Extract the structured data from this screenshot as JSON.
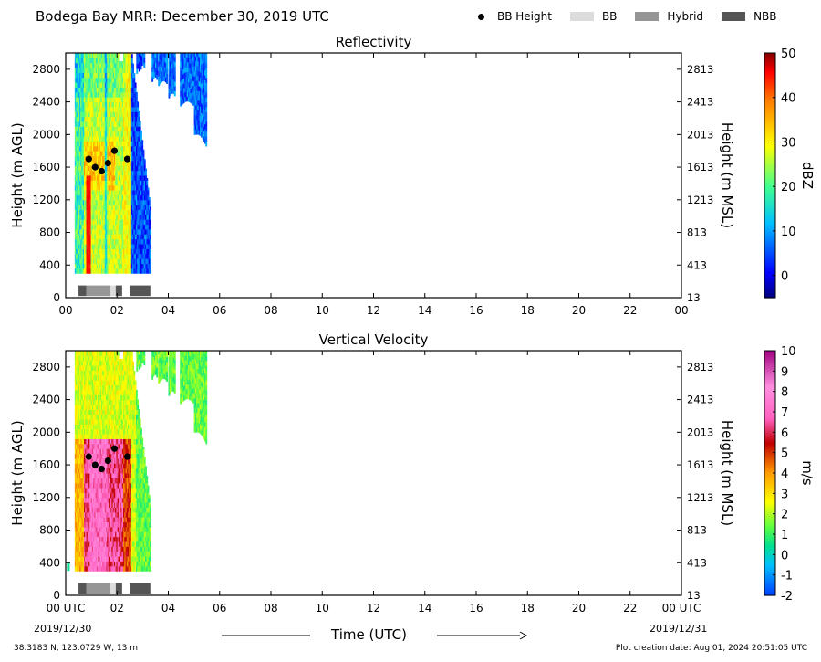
{
  "title": "Bodega Bay MRR:  December 30, 2019 UTC",
  "legend": [
    {
      "label": "BB Height",
      "kind": "dot",
      "color": "#000000"
    },
    {
      "label": "BB",
      "kind": "patch",
      "color": "#dcdcdc"
    },
    {
      "label": "Hybrid",
      "kind": "patch",
      "color": "#969696"
    },
    {
      "label": "NBB",
      "kind": "patch",
      "color": "#555555"
    }
  ],
  "footer": {
    "location": "38.3183 N, 123.0729 W, 13 m",
    "created": "Plot creation date: Aug 01, 2024 20:51:05 UTC"
  },
  "xaxis": {
    "label": "Time (UTC)",
    "start_date": "2019/12/30",
    "end_date": "2019/12/31"
  },
  "chart_data": [
    {
      "type": "heatmap",
      "title": "Reflectivity",
      "ylabel_left": "Height (m AGL)",
      "ylabel_right": "Height (m MSL)",
      "colorbar_label": "dBZ",
      "colorbar_range": [
        -5,
        50
      ],
      "colorbar_ticks": [
        0,
        10,
        20,
        30,
        40,
        50
      ],
      "xlim_hours": [
        0,
        24
      ],
      "ylim": [
        0,
        3000
      ],
      "x_ticks": [
        "00",
        "02",
        "04",
        "06",
        "08",
        "10",
        "12",
        "14",
        "16",
        "18",
        "20",
        "22",
        "00"
      ],
      "y_ticks_left": [
        0,
        400,
        800,
        1200,
        1600,
        2000,
        2400,
        2800
      ],
      "y_ticks_right": [
        13,
        413,
        813,
        1213,
        1613,
        2013,
        2413,
        2813
      ],
      "bb_height_points": [
        {
          "t": 0.9,
          "h": 1700
        },
        {
          "t": 1.15,
          "h": 1600
        },
        {
          "t": 1.4,
          "h": 1550
        },
        {
          "t": 1.65,
          "h": 1650
        },
        {
          "t": 1.9,
          "h": 1800
        },
        {
          "t": 2.4,
          "h": 1700
        }
      ],
      "bb_type_segments": [
        {
          "start": 0.5,
          "end": 0.8,
          "type": "NBB"
        },
        {
          "start": 0.8,
          "end": 1.75,
          "type": "Hybrid"
        },
        {
          "start": 1.75,
          "end": 1.95,
          "type": "BB"
        },
        {
          "start": 1.95,
          "end": 2.2,
          "type": "NBB"
        },
        {
          "start": 2.5,
          "end": 3.3,
          "type": "NBB"
        }
      ]
    },
    {
      "type": "heatmap",
      "title": "Vertical Velocity",
      "ylabel_left": "Height (m AGL)",
      "ylabel_right": "Height (m MSL)",
      "colorbar_label": "m/s",
      "colorbar_range": [
        -2,
        10
      ],
      "colorbar_ticks": [
        10,
        9,
        8,
        7,
        6,
        5,
        4,
        3,
        2,
        1,
        0,
        -1,
        -2
      ],
      "xlim_hours": [
        0,
        24
      ],
      "ylim": [
        0,
        3000
      ],
      "x_ticks": [
        "00 UTC",
        "02",
        "04",
        "06",
        "08",
        "10",
        "12",
        "14",
        "16",
        "18",
        "20",
        "22",
        "00 UTC"
      ],
      "y_ticks_left": [
        0,
        400,
        800,
        1200,
        1600,
        2000,
        2400,
        2800
      ],
      "y_ticks_right": [
        13,
        413,
        813,
        1213,
        1613,
        2013,
        2413,
        2813
      ],
      "bb_height_points": [
        {
          "t": 0.9,
          "h": 1700
        },
        {
          "t": 1.15,
          "h": 1600
        },
        {
          "t": 1.4,
          "h": 1550
        },
        {
          "t": 1.65,
          "h": 1650
        },
        {
          "t": 1.9,
          "h": 1800
        },
        {
          "t": 2.4,
          "h": 1700
        }
      ],
      "bb_type_segments": [
        {
          "start": 0.5,
          "end": 0.8,
          "type": "NBB"
        },
        {
          "start": 0.8,
          "end": 1.75,
          "type": "Hybrid"
        },
        {
          "start": 1.75,
          "end": 1.95,
          "type": "BB"
        },
        {
          "start": 1.95,
          "end": 2.2,
          "type": "NBB"
        },
        {
          "start": 2.5,
          "end": 3.3,
          "type": "NBB"
        }
      ]
    }
  ]
}
